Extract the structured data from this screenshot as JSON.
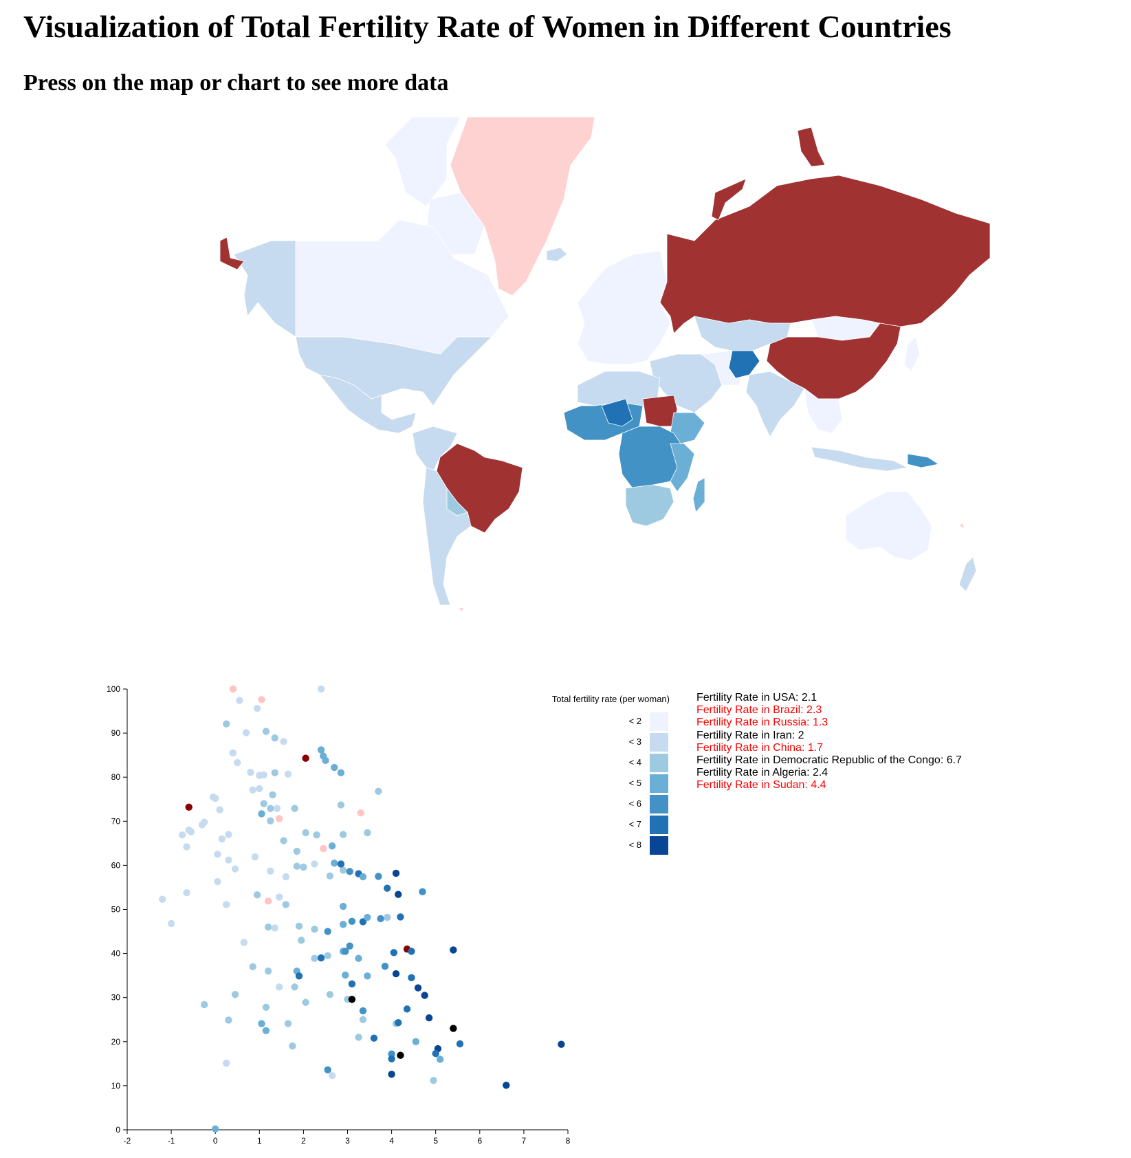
{
  "title": "Visualization of Total Fertility Rate of Women in Different Countries",
  "subtitle": "Press on the map or chart to see more data",
  "colors": {
    "selected_fill": "#a03232",
    "highlight_pink": "#ffd2d2",
    "scatter_selected": "#8b0000",
    "scatter_pink": "#ffc4c4",
    "scale": [
      "#eff3ff",
      "#c6dbef",
      "#9ecae1",
      "#6baed6",
      "#4292c6",
      "#2171b5",
      "#084594"
    ],
    "text_normal": "#000000",
    "text_selected": "#ff0000"
  },
  "legend": {
    "title": "Total fertility rate (per woman)",
    "items": [
      "< 2",
      "< 3",
      "< 4",
      "< 5",
      "< 6",
      "< 7",
      "< 8"
    ]
  },
  "info_list": [
    {
      "text": "Fertility Rate in USA: 2.1",
      "selected": false
    },
    {
      "text": "Fertility Rate in Brazil: 2.3",
      "selected": true
    },
    {
      "text": "Fertility Rate in Russia: 1.3",
      "selected": true
    },
    {
      "text": "Fertility Rate in Iran: 2",
      "selected": false
    },
    {
      "text": "Fertility Rate in China: 1.7",
      "selected": true
    },
    {
      "text": "Fertility Rate in Democratic Republic of the Congo: 6.7",
      "selected": false
    },
    {
      "text": "Fertility Rate in Algeria: 2.4",
      "selected": false
    },
    {
      "text": "Fertility Rate in Sudan: 4.4",
      "selected": true
    }
  ],
  "chart_data": {
    "type": "scatter",
    "xlim": [
      -2,
      8
    ],
    "ylim": [
      0,
      100
    ],
    "xticks": [
      "-2",
      "-1",
      "0",
      "1",
      "2",
      "3",
      "4",
      "5",
      "6",
      "7",
      "8"
    ],
    "yticks": [
      "0",
      "10",
      "20",
      "30",
      "40",
      "50",
      "60",
      "70",
      "80",
      "90",
      "100"
    ],
    "points": [
      [
        -0.6,
        73.2,
        "sel"
      ],
      [
        2.05,
        84.3,
        "sel"
      ],
      [
        4.35,
        41.0,
        "sel"
      ],
      [
        0.4,
        100.0,
        "pink"
      ],
      [
        1.05,
        97.6,
        "pink"
      ],
      [
        1.45,
        70.6,
        "pink"
      ],
      [
        3.3,
        71.9,
        "pink"
      ],
      [
        2.45,
        63.8,
        "pink"
      ],
      [
        1.2,
        51.9,
        "pink"
      ],
      [
        2.4,
        100.0,
        1
      ],
      [
        0.55,
        97.4,
        1
      ],
      [
        0.95,
        95.6,
        1
      ],
      [
        0.25,
        92.1,
        2
      ],
      [
        1.15,
        90.4,
        2
      ],
      [
        0.7,
        90.1,
        1
      ],
      [
        1.35,
        88.9,
        2
      ],
      [
        1.55,
        88.1,
        1
      ],
      [
        0.4,
        85.5,
        1
      ],
      [
        0.5,
        83.3,
        1
      ],
      [
        0.8,
        81.1,
        1
      ],
      [
        1.35,
        81.0,
        2
      ],
      [
        1.0,
        80.4,
        1
      ],
      [
        1.1,
        80.5,
        1
      ],
      [
        1.65,
        80.7,
        1
      ],
      [
        0.85,
        77.1,
        1
      ],
      [
        1.0,
        77.4,
        1
      ],
      [
        1.3,
        76.0,
        2
      ],
      [
        0.0,
        75.2,
        1
      ],
      [
        -0.05,
        75.5,
        1
      ],
      [
        1.1,
        74.0,
        2
      ],
      [
        1.25,
        72.9,
        2
      ],
      [
        1.4,
        72.9,
        1
      ],
      [
        1.8,
        72.9,
        2
      ],
      [
        0.1,
        72.6,
        1
      ],
      [
        1.05,
        71.7,
        3
      ],
      [
        1.25,
        70.1,
        2
      ],
      [
        -0.3,
        69.2,
        1
      ],
      [
        -0.25,
        69.8,
        1
      ],
      [
        -0.6,
        68.0,
        1
      ],
      [
        -0.55,
        67.6,
        1
      ],
      [
        -0.75,
        66.9,
        1
      ],
      [
        0.3,
        67.0,
        1
      ],
      [
        0.15,
        66.0,
        1
      ],
      [
        1.55,
        65.6,
        2
      ],
      [
        2.05,
        67.4,
        2
      ],
      [
        2.3,
        66.9,
        2
      ],
      [
        2.9,
        67.0,
        2
      ],
      [
        -0.65,
        64.2,
        1
      ],
      [
        0.05,
        62.5,
        1
      ],
      [
        0.9,
        61.9,
        1
      ],
      [
        0.3,
        61.2,
        1
      ],
      [
        1.85,
        63.2,
        2
      ],
      [
        2.25,
        60.3,
        1
      ],
      [
        1.85,
        59.8,
        2
      ],
      [
        2.0,
        59.6,
        2
      ],
      [
        0.45,
        59.2,
        1
      ],
      [
        1.25,
        58.7,
        1
      ],
      [
        1.6,
        57.4,
        1
      ],
      [
        2.6,
        57.6,
        2
      ],
      [
        2.9,
        58.9,
        2
      ],
      [
        0.05,
        56.3,
        1
      ],
      [
        0.95,
        53.3,
        2
      ],
      [
        1.45,
        52.8,
        1
      ],
      [
        -0.65,
        53.8,
        1
      ],
      [
        -1.2,
        52.3,
        1
      ],
      [
        0.25,
        51.1,
        1
      ],
      [
        1.6,
        51.1,
        2
      ],
      [
        -1.0,
        46.8,
        1
      ],
      [
        1.2,
        46.0,
        2
      ],
      [
        1.35,
        45.8,
        1
      ],
      [
        1.9,
        46.2,
        2
      ],
      [
        2.25,
        45.5,
        2
      ],
      [
        0.65,
        42.5,
        1
      ],
      [
        1.95,
        43.0,
        2
      ],
      [
        0.85,
        37.0,
        2
      ],
      [
        1.2,
        36.0,
        2
      ],
      [
        1.85,
        36.0,
        3
      ],
      [
        2.25,
        38.9,
        2
      ],
      [
        2.55,
        39.5,
        2
      ],
      [
        2.9,
        40.5,
        3
      ],
      [
        1.45,
        32.4,
        1
      ],
      [
        1.8,
        32.4,
        2
      ],
      [
        2.6,
        30.7,
        2
      ],
      [
        0.45,
        30.7,
        2
      ],
      [
        -0.25,
        28.4,
        2
      ],
      [
        2.05,
        28.9,
        2
      ],
      [
        1.15,
        27.8,
        2
      ],
      [
        0.3,
        24.9,
        2
      ],
      [
        1.05,
        24.1,
        3
      ],
      [
        1.65,
        24.1,
        2
      ],
      [
        1.15,
        22.5,
        3
      ],
      [
        1.75,
        19.0,
        2
      ],
      [
        3.25,
        21.0,
        2
      ],
      [
        0.25,
        15.1,
        1
      ],
      [
        2.65,
        12.3,
        1
      ],
      [
        2.4,
        86.2,
        3
      ],
      [
        2.45,
        84.8,
        3
      ],
      [
        2.5,
        83.8,
        3
      ],
      [
        2.7,
        82.2,
        3
      ],
      [
        2.85,
        81.0,
        3
      ],
      [
        3.7,
        76.8,
        2
      ],
      [
        2.85,
        73.7,
        2
      ],
      [
        3.45,
        67.4,
        2
      ],
      [
        2.65,
        64.4,
        3
      ],
      [
        2.7,
        60.5,
        3
      ],
      [
        2.85,
        60.3,
        5
      ],
      [
        3.05,
        58.6,
        4
      ],
      [
        3.25,
        58.1,
        5
      ],
      [
        3.7,
        57.5,
        4
      ],
      [
        3.35,
        57.4,
        3
      ],
      [
        4.1,
        58.2,
        6
      ],
      [
        3.9,
        54.8,
        5
      ],
      [
        4.15,
        53.4,
        6
      ],
      [
        4.7,
        54.0,
        4
      ],
      [
        2.9,
        50.7,
        3
      ],
      [
        2.9,
        46.6,
        3
      ],
      [
        3.1,
        47.3,
        4
      ],
      [
        3.35,
        47.2,
        5
      ],
      [
        3.45,
        48.2,
        3
      ],
      [
        3.75,
        47.9,
        4
      ],
      [
        3.9,
        48.2,
        2
      ],
      [
        4.2,
        48.3,
        5
      ],
      [
        2.55,
        45.0,
        4
      ],
      [
        3.05,
        41.7,
        4
      ],
      [
        2.95,
        40.5,
        4
      ],
      [
        4.05,
        40.2,
        5
      ],
      [
        4.45,
        40.5,
        5
      ],
      [
        5.4,
        40.8,
        6
      ],
      [
        2.4,
        39.0,
        5
      ],
      [
        3.25,
        38.9,
        3
      ],
      [
        3.85,
        37.1,
        4
      ],
      [
        1.9,
        34.9,
        5
      ],
      [
        3.45,
        34.9,
        3
      ],
      [
        4.1,
        35.4,
        6
      ],
      [
        4.45,
        34.5,
        5
      ],
      [
        2.95,
        35.1,
        3
      ],
      [
        3.1,
        33.1,
        5
      ],
      [
        4.6,
        32.2,
        6
      ],
      [
        4.75,
        30.5,
        6
      ],
      [
        3.0,
        29.6,
        2
      ],
      [
        3.1,
        29.6,
        7
      ],
      [
        3.35,
        27.0,
        4
      ],
      [
        4.35,
        27.4,
        5
      ],
      [
        4.85,
        25.4,
        6
      ],
      [
        3.35,
        25.0,
        2
      ],
      [
        4.1,
        24.1,
        2
      ],
      [
        4.15,
        24.3,
        5
      ],
      [
        5.4,
        23.0,
        7
      ],
      [
        3.6,
        20.8,
        5
      ],
      [
        4.55,
        20.0,
        3
      ],
      [
        5.05,
        18.4,
        6
      ],
      [
        5.55,
        19.5,
        5
      ],
      [
        4.0,
        17.2,
        4
      ],
      [
        4.2,
        16.9,
        7
      ],
      [
        5.0,
        17.3,
        5
      ],
      [
        4.0,
        16.1,
        5
      ],
      [
        5.1,
        16.0,
        3
      ],
      [
        2.55,
        13.6,
        4
      ],
      [
        4.0,
        12.6,
        6
      ],
      [
        4.95,
        11.2,
        2
      ],
      [
        6.6,
        10.1,
        6
      ],
      [
        7.85,
        19.4,
        6
      ],
      [
        0.0,
        0.2,
        3
      ]
    ]
  },
  "map_data": {
    "regions": [
      {
        "name": "Greenland",
        "shade": "pink"
      },
      {
        "name": "Canada",
        "shade": 0
      },
      {
        "name": "Alaska",
        "shade": 1
      },
      {
        "name": "United States",
        "shade": 1
      },
      {
        "name": "Mexico",
        "shade": 1
      },
      {
        "name": "Brazil",
        "shade": "sel"
      },
      {
        "name": "Russia",
        "shade": "sel"
      },
      {
        "name": "China",
        "shade": "sel"
      },
      {
        "name": "Sudan",
        "shade": "sel"
      },
      {
        "name": "Afghanistan",
        "shade": 5
      },
      {
        "name": "Australia",
        "shade": 0
      },
      {
        "name": "Mongolia",
        "shade": 0
      }
    ]
  }
}
